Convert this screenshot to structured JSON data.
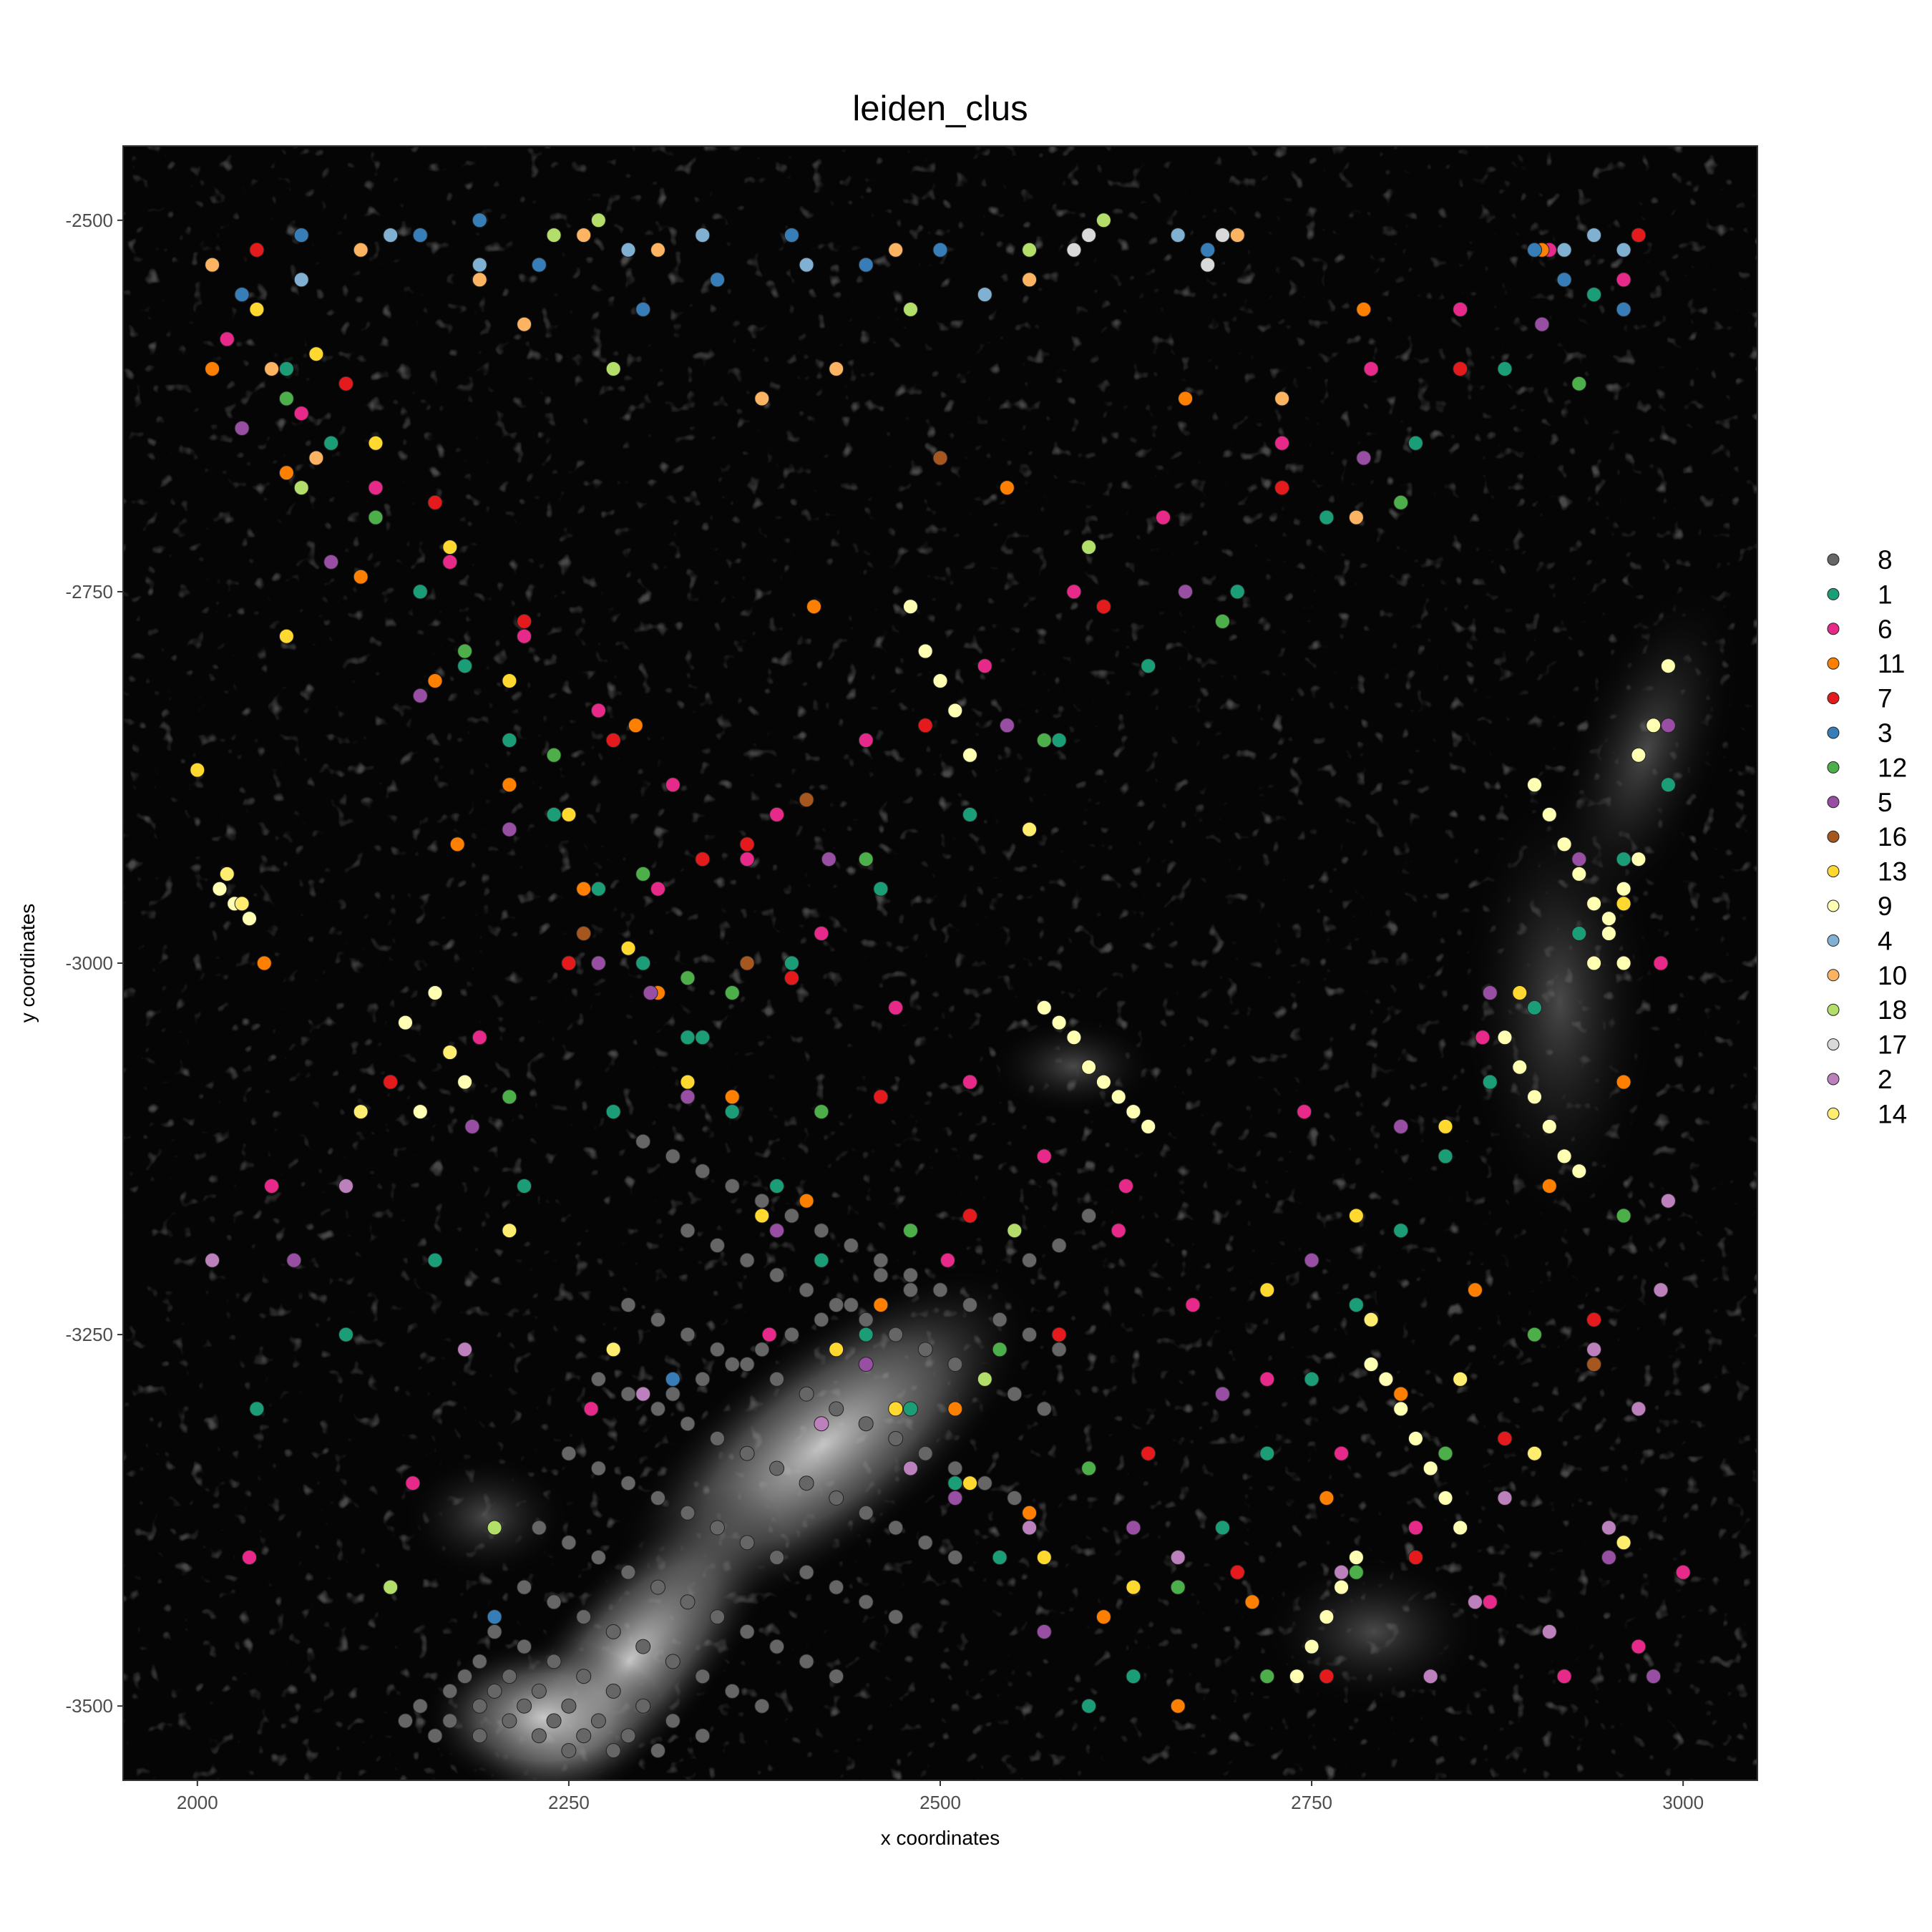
{
  "chart_data": {
    "type": "scatter",
    "title": "leiden_clus",
    "xlabel": "x coordinates",
    "ylabel": "y coordinates",
    "xlim": [
      1950,
      3050
    ],
    "ylim": [
      -3550,
      -2450
    ],
    "x_ticks": [
      2000,
      2250,
      2500,
      2750,
      3000
    ],
    "y_ticks": [
      -2500,
      -2750,
      -3000,
      -3250,
      -3500
    ],
    "x_tick_labels": [
      "2000",
      "2250",
      "2500",
      "2750",
      "3000"
    ],
    "y_tick_labels": [
      "-2500",
      "-2750",
      "-3000",
      "-3250",
      "-3500"
    ],
    "background": "dark grayscale tissue image",
    "grid": false,
    "legend_position": "right",
    "legend": [
      {
        "name": "8",
        "color": "#666666"
      },
      {
        "name": "1",
        "color": "#1b9e77"
      },
      {
        "name": "6",
        "color": "#e7298a"
      },
      {
        "name": "11",
        "color": "#ff7f00"
      },
      {
        "name": "7",
        "color": "#e41a1c"
      },
      {
        "name": "3",
        "color": "#377eb8"
      },
      {
        "name": "12",
        "color": "#4daf4a"
      },
      {
        "name": "5",
        "color": "#984ea3"
      },
      {
        "name": "16",
        "color": "#a6561f"
      },
      {
        "name": "13",
        "color": "#ffd92f"
      },
      {
        "name": "9",
        "color": "#ffffb3"
      },
      {
        "name": "4",
        "color": "#80b1d3"
      },
      {
        "name": "10",
        "color": "#fdb462"
      },
      {
        "name": "18",
        "color": "#b3de69"
      },
      {
        "name": "17",
        "color": "#d9d9d9"
      },
      {
        "name": "2",
        "color": "#bc80bd"
      },
      {
        "name": "14",
        "color": "#ffed6f"
      }
    ],
    "series": [
      {
        "name": "8",
        "x": [
          2300,
          2320,
          2340,
          2360,
          2380,
          2400,
          2420,
          2440,
          2460,
          2480,
          2500,
          2520,
          2540,
          2560,
          2580,
          2330,
          2350,
          2370,
          2390,
          2410,
          2430,
          2450,
          2470,
          2490,
          2510,
          2530,
          2550,
          2570,
          2290,
          2310,
          2330,
          2350,
          2370,
          2390,
          2410,
          2430,
          2450,
          2470,
          2490,
          2510,
          2530,
          2550,
          2270,
          2290,
          2310,
          2330,
          2350,
          2370,
          2390,
          2410,
          2430,
          2450,
          2470,
          2490,
          2510,
          2250,
          2270,
          2290,
          2310,
          2330,
          2350,
          2370,
          2390,
          2410,
          2430,
          2450,
          2470,
          2230,
          2250,
          2270,
          2290,
          2310,
          2330,
          2350,
          2370,
          2390,
          2410,
          2430,
          2220,
          2240,
          2260,
          2280,
          2300,
          2320,
          2340,
          2360,
          2380,
          2200,
          2220,
          2240,
          2260,
          2280,
          2300,
          2320,
          2340,
          2190,
          2210,
          2230,
          2250,
          2270,
          2290,
          2310,
          2180,
          2200,
          2220,
          2240,
          2260,
          2280,
          2170,
          2190,
          2210,
          2230,
          2250,
          2150,
          2170,
          2190,
          2140,
          2160,
          2600,
          2620,
          2580,
          2560,
          2460,
          2480,
          2440,
          2420,
          2400,
          2380,
          2360,
          2340,
          2320
        ],
        "y": [
          -3120,
          -3130,
          -3140,
          -3150,
          -3160,
          -3170,
          -3180,
          -3190,
          -3200,
          -3210,
          -3220,
          -3230,
          -3240,
          -3250,
          -3260,
          -3180,
          -3190,
          -3200,
          -3210,
          -3220,
          -3230,
          -3240,
          -3250,
          -3260,
          -3270,
          -3280,
          -3290,
          -3300,
          -3230,
          -3240,
          -3250,
          -3260,
          -3270,
          -3280,
          -3290,
          -3300,
          -3310,
          -3320,
          -3330,
          -3340,
          -3350,
          -3360,
          -3280,
          -3290,
          -3300,
          -3310,
          -3320,
          -3330,
          -3340,
          -3350,
          -3360,
          -3370,
          -3380,
          -3390,
          -3400,
          -3330,
          -3340,
          -3350,
          -3360,
          -3370,
          -3380,
          -3390,
          -3400,
          -3410,
          -3420,
          -3430,
          -3440,
          -3380,
          -3390,
          -3400,
          -3410,
          -3420,
          -3430,
          -3440,
          -3450,
          -3460,
          -3470,
          -3480,
          -3420,
          -3430,
          -3440,
          -3450,
          -3460,
          -3470,
          -3480,
          -3490,
          -3500,
          -3450,
          -3460,
          -3470,
          -3480,
          -3490,
          -3500,
          -3510,
          -3520,
          -3470,
          -3480,
          -3490,
          -3500,
          -3510,
          -3520,
          -3530,
          -3480,
          -3490,
          -3500,
          -3510,
          -3520,
          -3530,
          -3490,
          -3500,
          -3510,
          -3520,
          -3530,
          -3500,
          -3510,
          -3520,
          -3510,
          -3520,
          -3170,
          -3180,
          -3190,
          -3200,
          -3210,
          -3220,
          -3230,
          -3240,
          -3250,
          -3260,
          -3270,
          -3280,
          -3290
        ]
      },
      {
        "name": "1",
        "x": [
          2030,
          2060,
          2090,
          2120,
          2150,
          2180,
          2210,
          2240,
          2270,
          2300,
          2330,
          2360,
          2390,
          2420,
          2450,
          2480,
          2510,
          2540,
          2570,
          2600,
          2630,
          2660,
          2690,
          2720,
          2750,
          2780,
          2810,
          2840,
          2870,
          2900,
          2930,
          2960,
          2990,
          2040,
          2100,
          2160,
          2220,
          2280,
          2340,
          2400,
          2460,
          2520,
          2580,
          2640,
          2700,
          2760,
          2820,
          2880,
          2940
        ],
        "y": [
          -2550,
          -2600,
          -2650,
          -2700,
          -2750,
          -2800,
          -2850,
          -2900,
          -2950,
          -3000,
          -3050,
          -3100,
          -3150,
          -3200,
          -3250,
          -3300,
          -3350,
          -3400,
          -3450,
          -3500,
          -3480,
          -3420,
          -3380,
          -3330,
          -3280,
          -3230,
          -3180,
          -3130,
          -3080,
          -3030,
          -2980,
          -2930,
          -2880,
          -3300,
          -3250,
          -3200,
          -3150,
          -3100,
          -3050,
          -3000,
          -2950,
          -2900,
          -2850,
          -2800,
          -2750,
          -2700,
          -2650,
          -2600,
          -2550
        ]
      },
      {
        "name": "6",
        "x": [
          2020,
          2070,
          2120,
          2170,
          2220,
          2270,
          2320,
          2370,
          2420,
          2470,
          2520,
          2570,
          2620,
          2670,
          2720,
          2770,
          2820,
          2870,
          2920,
          2970,
          3000,
          2050,
          2110,
          2190,
          2250,
          2310,
          2390,
          2450,
          2530,
          2590,
          2650,
          2730,
          2790,
          2850,
          2910,
          2960,
          2035,
          2145,
          2265,
          2385,
          2505,
          2625,
          2745,
          2865,
          2985
        ],
        "y": [
          -2580,
          -2630,
          -2680,
          -2730,
          -2780,
          -2830,
          -2880,
          -2930,
          -2980,
          -3030,
          -3080,
          -3130,
          -3180,
          -3230,
          -3280,
          -3330,
          -3380,
          -3430,
          -3480,
          -3460,
          -3410,
          -3150,
          -3100,
          -3050,
          -3000,
          -2950,
          -2900,
          -2850,
          -2800,
          -2750,
          -2700,
          -2650,
          -2600,
          -2560,
          -2520,
          -2540,
          -3400,
          -3350,
          -3300,
          -3250,
          -3200,
          -3150,
          -3100,
          -3050,
          -3000
        ]
      },
      {
        "name": "11",
        "x": [
          2010,
          2060,
          2110,
          2160,
          2210,
          2260,
          2310,
          2360,
          2410,
          2460,
          2510,
          2560,
          2610,
          2660,
          2710,
          2760,
          2810,
          2860,
          2910,
          2960,
          2045,
          2175,
          2295,
          2415,
          2545,
          2665,
          2785,
          2905
        ],
        "y": [
          -2600,
          -2670,
          -2740,
          -2810,
          -2880,
          -2950,
          -3020,
          -3090,
          -3160,
          -3230,
          -3300,
          -3370,
          -3440,
          -3500,
          -3430,
          -3360,
          -3290,
          -3220,
          -3150,
          -3080,
          -3000,
          -2920,
          -2840,
          -2760,
          -2680,
          -2620,
          -2560,
          -2520
        ]
      },
      {
        "name": "7",
        "x": [
          2040,
          2100,
          2160,
          2220,
          2280,
          2340,
          2400,
          2460,
          2520,
          2580,
          2640,
          2700,
          2760,
          2820,
          2880,
          2940,
          2990,
          2130,
          2250,
          2370,
          2490,
          2610,
          2730,
          2850,
          2970
        ],
        "y": [
          -2520,
          -2610,
          -2690,
          -2770,
          -2850,
          -2930,
          -3010,
          -3090,
          -3170,
          -3250,
          -3330,
          -3410,
          -3480,
          -3400,
          -3320,
          -3240,
          -3160,
          -3080,
          -3000,
          -2920,
          -2840,
          -2760,
          -2680,
          -2600,
          -2510
        ]
      },
      {
        "name": "3",
        "x": [
          2030,
          2070,
          2110,
          2150,
          2190,
          2230,
          2300,
          2350,
          2400,
          2450,
          2500,
          2900,
          2920,
          2940,
          2960,
          2680,
          2700,
          2320,
          2200
        ],
        "y": [
          -2550,
          -2510,
          -2520,
          -2510,
          -2500,
          -2530,
          -2560,
          -2540,
          -2510,
          -2530,
          -2520,
          -2520,
          -2540,
          -2510,
          -2560,
          -2520,
          -2510,
          -3280,
          -3440
        ]
      },
      {
        "name": "12",
        "x": [
          2060,
          2120,
          2180,
          2240,
          2300,
          2360,
          2420,
          2480,
          2540,
          2600,
          2660,
          2720,
          2780,
          2840,
          2900,
          2960,
          2210,
          2330,
          2450,
          2570,
          2690,
          2810,
          2930
        ],
        "y": [
          -2620,
          -2700,
          -2790,
          -2860,
          -2940,
          -3020,
          -3100,
          -3180,
          -3260,
          -3340,
          -3420,
          -3480,
          -3410,
          -3330,
          -3250,
          -3170,
          -3090,
          -3010,
          -2930,
          -2850,
          -2770,
          -2690,
          -2610
        ]
      },
      {
        "name": "5",
        "x": [
          2030,
          2090,
          2150,
          2210,
          2270,
          2330,
          2390,
          2450,
          2510,
          2570,
          2630,
          2690,
          2750,
          2810,
          2870,
          2930,
          2990,
          2065,
          2185,
          2305,
          2425,
          2545,
          2665,
          2785,
          2905,
          2970,
          2950,
          2980
        ],
        "y": [
          -2640,
          -2730,
          -2820,
          -2910,
          -3000,
          -3090,
          -3180,
          -3270,
          -3360,
          -3450,
          -3380,
          -3290,
          -3200,
          -3110,
          -3020,
          -2930,
          -2840,
          -3200,
          -3110,
          -3020,
          -2930,
          -2840,
          -2750,
          -2660,
          -2570,
          -3300,
          -3400,
          -3480
        ]
      },
      {
        "name": "16",
        "x": [
          2370,
          2410,
          2260,
          2130,
          2940,
          2500
        ],
        "y": [
          -3000,
          -2890,
          -2980,
          -3420,
          -3270,
          -2660
        ]
      },
      {
        "name": "13",
        "x": [
          2040,
          2080,
          2120,
          2170,
          2210,
          2250,
          2290,
          2330,
          2380,
          2430,
          2470,
          2520,
          2570,
          2630,
          2720,
          2780,
          2840,
          2890,
          2960,
          2000,
          2060
        ],
        "y": [
          -2560,
          -2590,
          -2650,
          -2720,
          -2810,
          -2900,
          -2990,
          -3080,
          -3170,
          -3260,
          -3300,
          -3350,
          -3400,
          -3420,
          -3220,
          -3170,
          -3110,
          -3020,
          -2960,
          -2870,
          -2780
        ]
      },
      {
        "name": "9",
        "x": [
          2480,
          2490,
          2500,
          2510,
          2520,
          2570,
          2580,
          2590,
          2600,
          2610,
          2620,
          2630,
          2640,
          2900,
          2910,
          2920,
          2930,
          2940,
          2950,
          2960,
          2970,
          2980,
          2990,
          2880,
          2890,
          2900,
          2910,
          2920,
          2930,
          2940,
          2950,
          2960,
          2970,
          2790,
          2800,
          2810,
          2820,
          2830,
          2840,
          2850,
          2780,
          2770,
          2760,
          2750,
          2740,
          2015,
          2025,
          2035,
          2160,
          2170,
          2180,
          2150,
          2140
        ],
        "y": [
          -2760,
          -2790,
          -2810,
          -2830,
          -2860,
          -3030,
          -3040,
          -3050,
          -3070,
          -3080,
          -3090,
          -3100,
          -3110,
          -2880,
          -2900,
          -2920,
          -2940,
          -2960,
          -2980,
          -3000,
          -2860,
          -2840,
          -2800,
          -3050,
          -3070,
          -3090,
          -3110,
          -3130,
          -3140,
          -3000,
          -2970,
          -2950,
          -2930,
          -3270,
          -3280,
          -3300,
          -3320,
          -3340,
          -3360,
          -3380,
          -3400,
          -3420,
          -3440,
          -3460,
          -3480,
          -2950,
          -2960,
          -2970,
          -3020,
          -3060,
          -3080,
          -3100,
          -3040
        ]
      },
      {
        "name": "4",
        "x": [
          2070,
          2130,
          2190,
          2290,
          2340,
          2410,
          2470,
          2530,
          2560,
          2660,
          2920,
          2940,
          2960
        ],
        "y": [
          -2540,
          -2510,
          -2530,
          -2520,
          -2510,
          -2530,
          -2520,
          -2550,
          -2520,
          -2510,
          -2520,
          -2510,
          -2520
        ]
      },
      {
        "name": "10",
        "x": [
          2010,
          2050,
          2080,
          2110,
          2190,
          2220,
          2260,
          2310,
          2380,
          2430,
          2470,
          2560,
          2700,
          2730,
          2780
        ],
        "y": [
          -2530,
          -2600,
          -2660,
          -2520,
          -2540,
          -2570,
          -2510,
          -2520,
          -2620,
          -2600,
          -2520,
          -2540,
          -2510,
          -2620,
          -2700
        ]
      },
      {
        "name": "18",
        "x": [
          2070,
          2240,
          2270,
          2280,
          2480,
          2560,
          2610,
          2600,
          2550,
          2530,
          2200,
          2130
        ],
        "y": [
          -2680,
          -2510,
          -2500,
          -2600,
          -2560,
          -2520,
          -2500,
          -2720,
          -3180,
          -3280,
          -3380,
          -3420
        ]
      },
      {
        "name": "17",
        "x": [
          2590,
          2600,
          2680,
          2690
        ],
        "y": [
          -2520,
          -2510,
          -2530,
          -2510
        ]
      },
      {
        "name": "2",
        "x": [
          2010,
          2100,
          2180,
          2300,
          2420,
          2480,
          2560,
          2660,
          2770,
          2860,
          2910,
          2950,
          2970,
          2985,
          2990,
          2940,
          2880,
          2830
        ],
        "y": [
          -3200,
          -3150,
          -3260,
          -3290,
          -3310,
          -3340,
          -3380,
          -3400,
          -3410,
          -3430,
          -3450,
          -3380,
          -3300,
          -3220,
          -3160,
          -3260,
          -3360,
          -3480
        ]
      },
      {
        "name": "14",
        "x": [
          2020,
          2030,
          2110,
          2170,
          2210,
          2280,
          2560,
          2790,
          2850,
          2900,
          2960
        ],
        "y": [
          -2940,
          -2960,
          -3100,
          -3060,
          -3180,
          -3260,
          -2910,
          -3240,
          -3280,
          -3330,
          -3390
        ]
      }
    ]
  }
}
